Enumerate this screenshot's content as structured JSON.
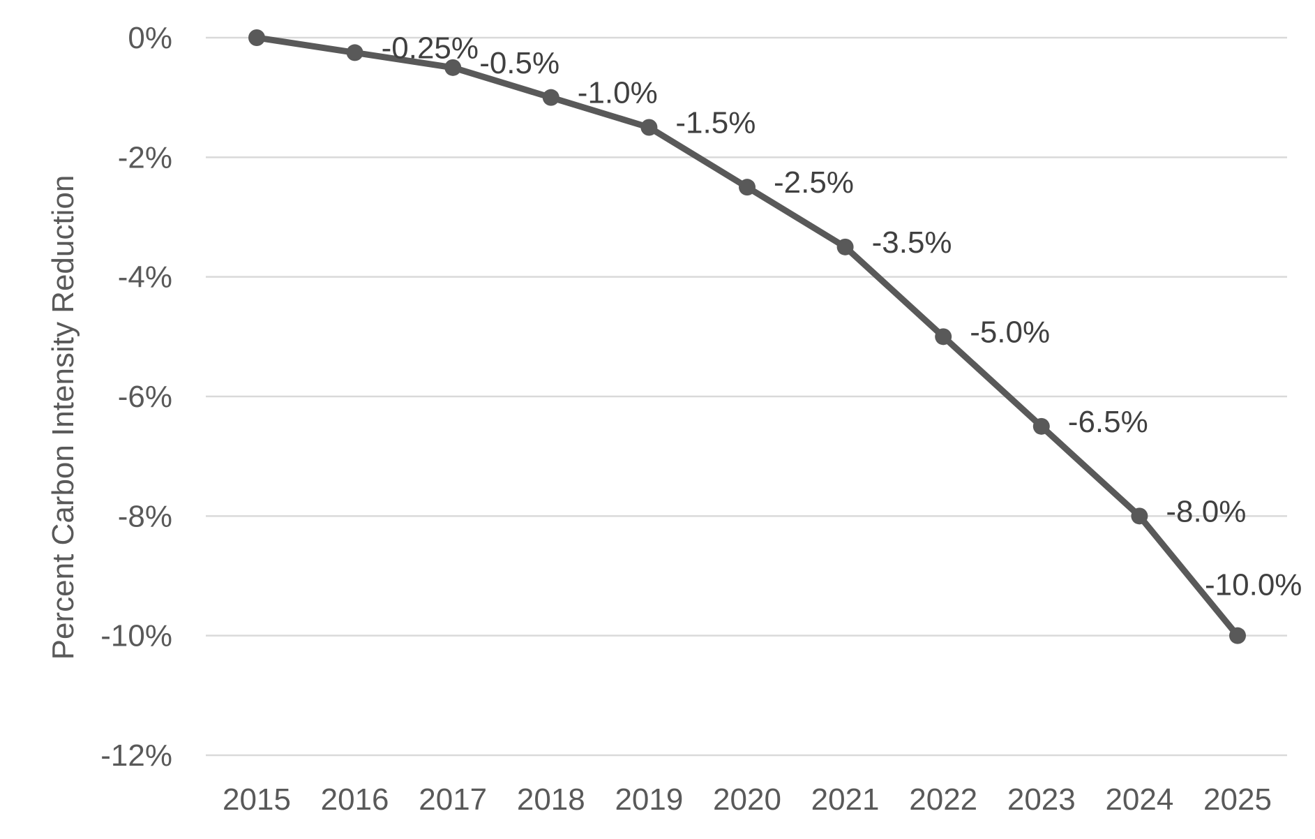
{
  "chart_data": {
    "type": "line",
    "title": "",
    "xlabel": "",
    "ylabel": "Percent Carbon Intensity Reduction",
    "x": [
      "2015",
      "2016",
      "2017",
      "2018",
      "2019",
      "2020",
      "2021",
      "2022",
      "2023",
      "2024",
      "2025"
    ],
    "series": [
      {
        "name": "",
        "values": [
          0,
          -0.25,
          -0.5,
          -1.0,
          -1.5,
          -2.5,
          -3.5,
          -5.0,
          -6.5,
          -8.0,
          -10.0
        ],
        "data_labels": [
          "",
          "-0.25%",
          "-0.5%",
          "-1.0%",
          "-1.5%",
          "-2.5%",
          "-3.5%",
          "-5.0%",
          "-6.5%",
          "-8.0%",
          "-10.0%"
        ]
      }
    ],
    "ylim": [
      -12,
      0
    ],
    "y_ticks": [
      0,
      -2,
      -4,
      -6,
      -8,
      -10,
      -12
    ],
    "y_tick_labels": [
      "0%",
      "-2%",
      "-4%",
      "-6%",
      "-8%",
      "-10%",
      "-12%"
    ],
    "grid": true,
    "legend": "none",
    "colors": {
      "line": "#595959",
      "grid": "#d9d9d9",
      "text": "#595959",
      "data_label": "#404040"
    }
  }
}
